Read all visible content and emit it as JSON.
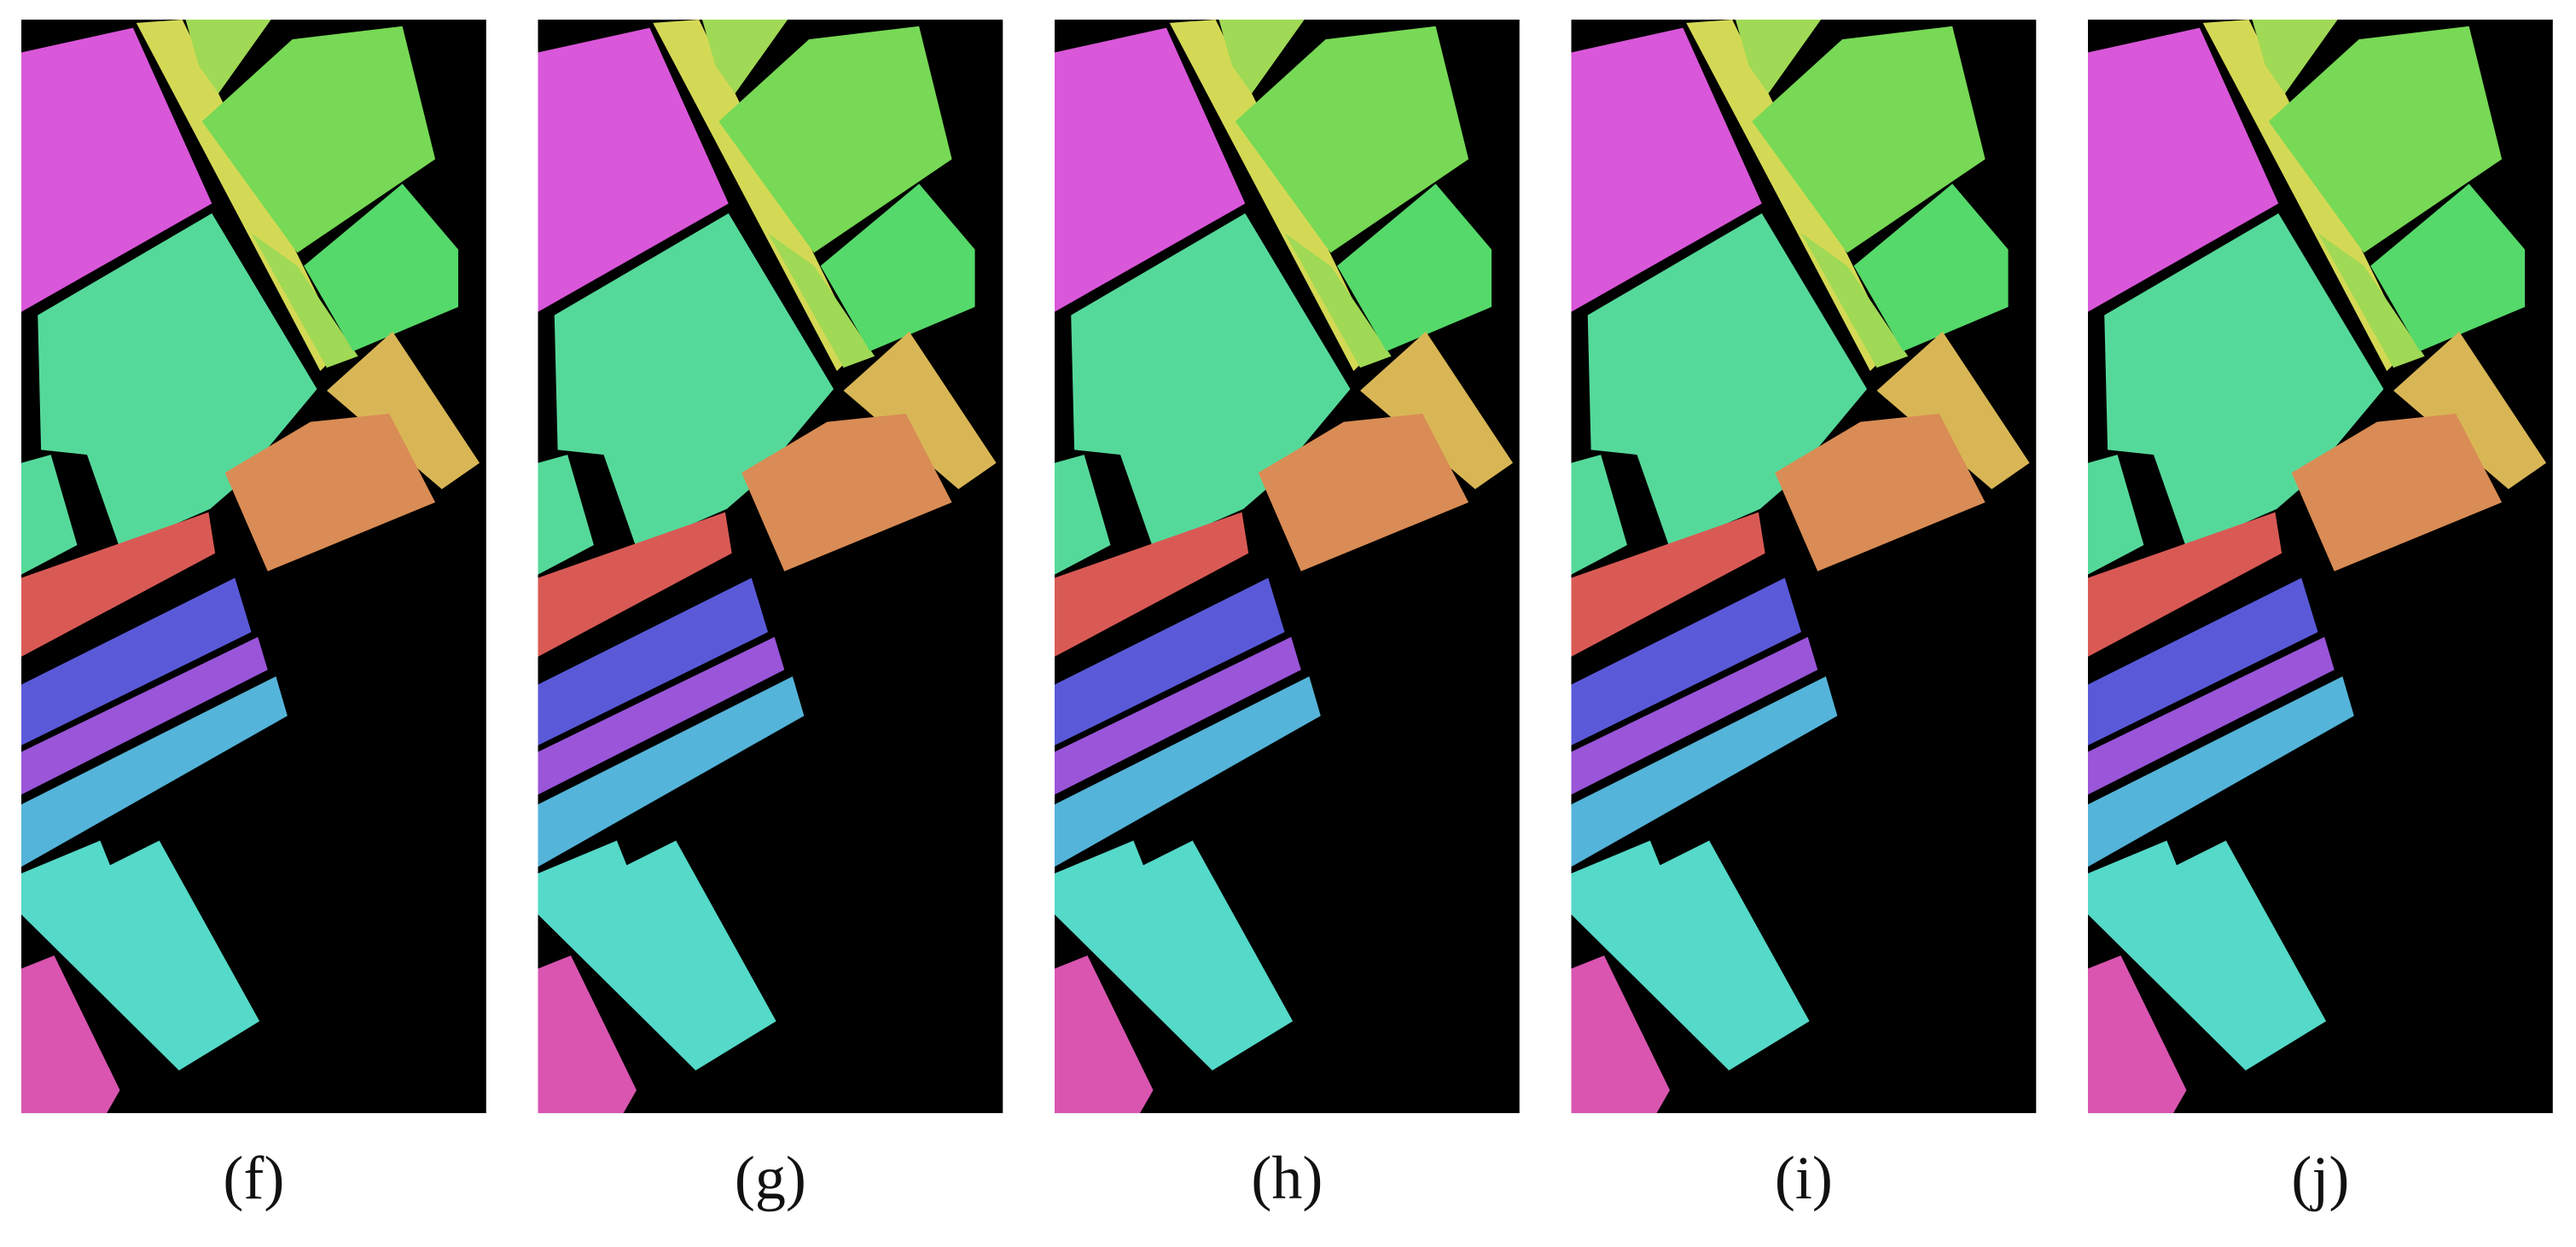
{
  "panels": [
    {
      "label": "(f)"
    },
    {
      "label": "(g)"
    },
    {
      "label": "(h)"
    },
    {
      "label": "(i)"
    },
    {
      "label": "(j)"
    }
  ]
}
